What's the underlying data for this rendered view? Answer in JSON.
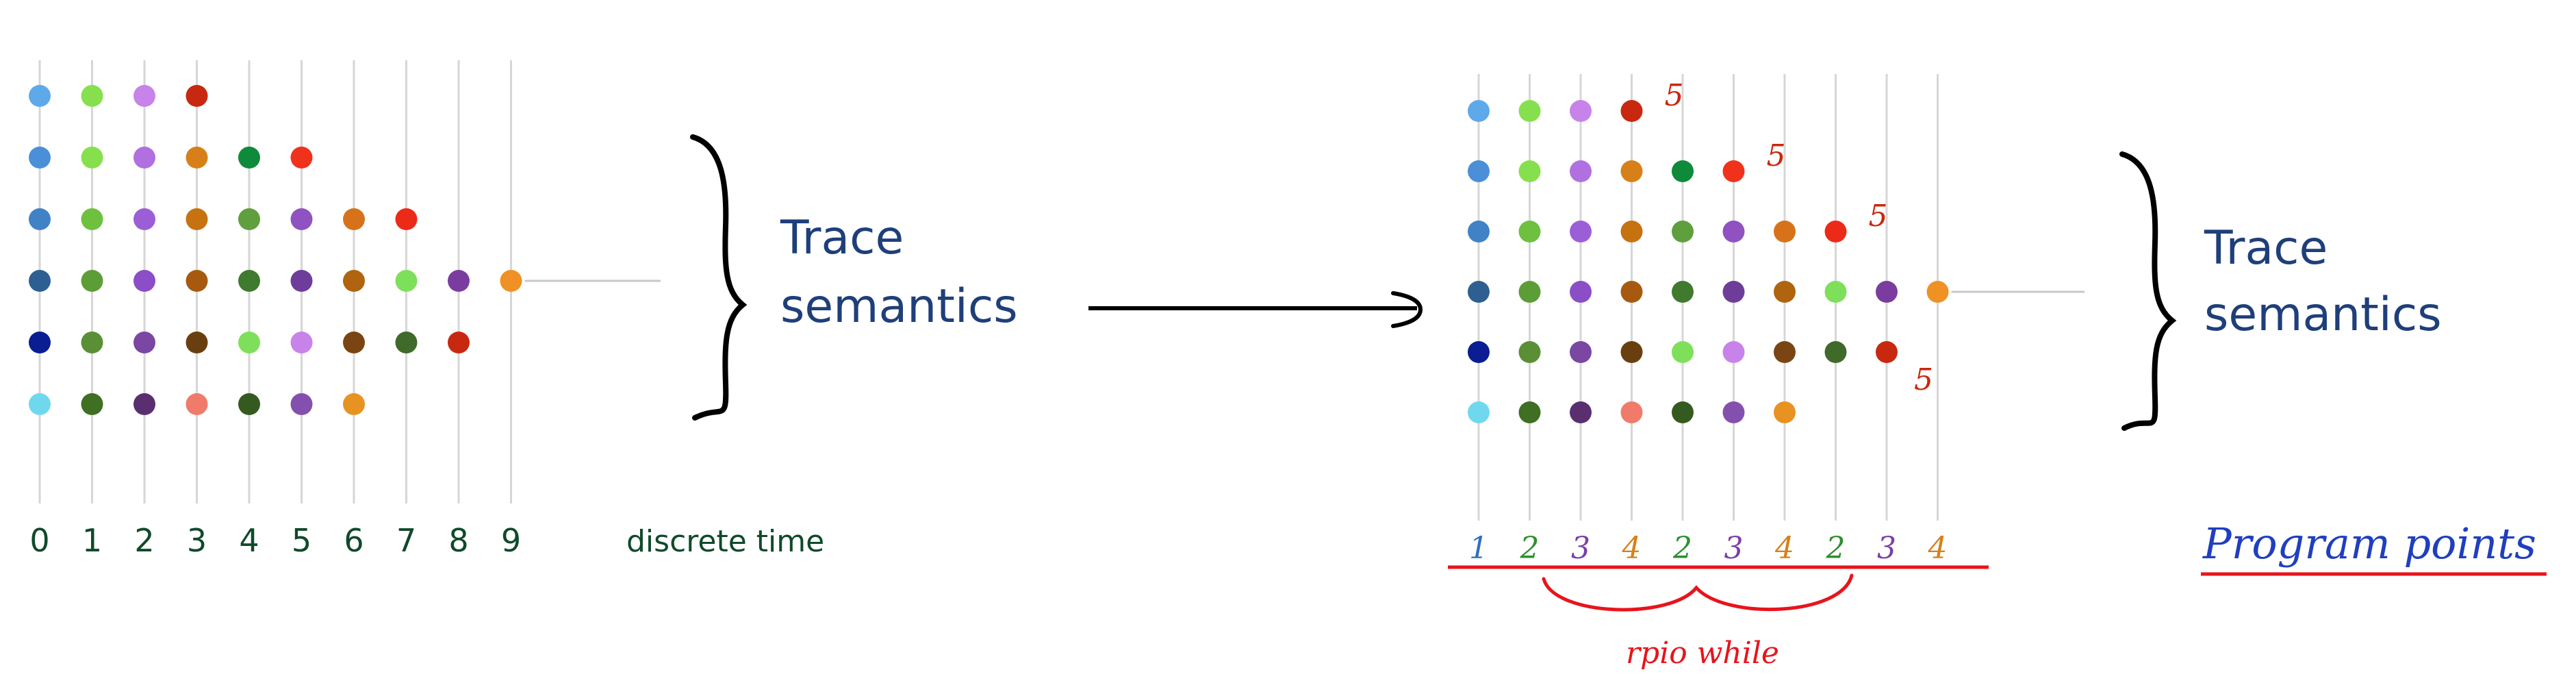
{
  "left": {
    "time_ticks": [
      "0",
      "1",
      "2",
      "3",
      "4",
      "5",
      "6",
      "7",
      "8",
      "9"
    ],
    "axis_caption": "discrete time",
    "brace_label_line1": "Trace",
    "brace_label_line2": "semantics",
    "rows": [
      [
        "#5ea9ea",
        "#86e04e",
        "#c783ea",
        "#c8280f"
      ],
      [
        "#4a8fd8",
        "#86e04e",
        "#b170e0",
        "#d7801a",
        "#0d8a3a",
        "#f0321d"
      ],
      [
        "#3f82c6",
        "#6ec03f",
        "#9c5ed7",
        "#c67210",
        "#5f9f3d",
        "#8f52c0",
        "#d6731a",
        "#ec2a18"
      ],
      [
        "#2e5f93",
        "#5d9d38",
        "#8b4ec6",
        "#a75a0f",
        "#3f7a2e",
        "#6e3d9a",
        "#b0640f",
        "#7ee05a",
        "#7a3d9f",
        "#ef9124"
      ],
      [
        "#0a1d92",
        "#5a8f35",
        "#7a47a3",
        "#6a3f10",
        "#7ee05a",
        "#c783ea",
        "#7a4513",
        "#3f6a2a",
        "#c8280f"
      ],
      [
        "#6fd8ef",
        "#3f6f22",
        "#5a2f6f",
        "#f07b6b",
        "#355a1f",
        "#8450ad",
        "#e89222"
      ]
    ]
  },
  "right": {
    "program_points": [
      "1",
      "2",
      "3",
      "4",
      "2",
      "3",
      "4",
      "2",
      "3",
      "4"
    ],
    "program_point_colors": [
      "#2f6fbf",
      "#2f8f2f",
      "#7a3fa8",
      "#d7801a",
      "#2f8f2f",
      "#7a3fa8",
      "#d7801a",
      "#2f8f2f",
      "#7a3fa8",
      "#d7801a"
    ],
    "five_label": "5",
    "program_points_caption": "Program points",
    "brace_label_line1": "Trace",
    "brace_label_line2": "semantics",
    "handwritten_note": "rpio while",
    "rows": [
      [
        "#5ea9ea",
        "#86e04e",
        "#c783ea",
        "#c8280f"
      ],
      [
        "#4a8fd8",
        "#86e04e",
        "#b170e0",
        "#d7801a",
        "#0d8a3a",
        "#f0321d"
      ],
      [
        "#3f82c6",
        "#6ec03f",
        "#9c5ed7",
        "#c67210",
        "#5f9f3d",
        "#8f52c0",
        "#d6731a",
        "#ec2a18"
      ],
      [
        "#2e5f93",
        "#5d9d38",
        "#8b4ec6",
        "#a75a0f",
        "#3f7a2e",
        "#6e3d9a",
        "#b0640f",
        "#7ee05a",
        "#7a3d9f",
        "#ef9124"
      ],
      [
        "#0a1d92",
        "#5a8f35",
        "#7a47a3",
        "#6a3f10",
        "#7ee05a",
        "#c783ea",
        "#7a4513",
        "#3f6a2a",
        "#c8280f"
      ],
      [
        "#6fd8ef",
        "#3f6f22",
        "#5a2f6f",
        "#f07b6b",
        "#355a1f",
        "#8450ad",
        "#e89222"
      ]
    ]
  }
}
